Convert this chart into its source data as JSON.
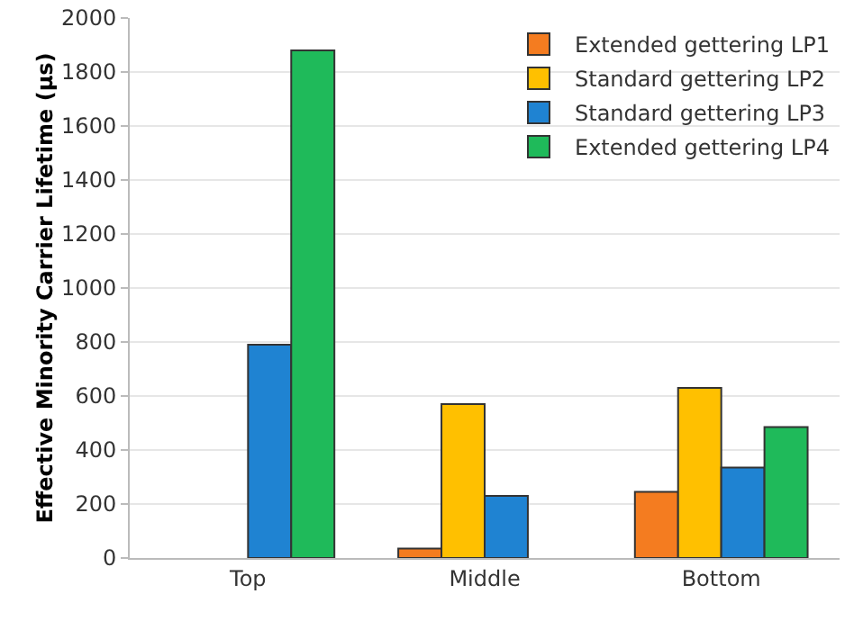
{
  "chart_data": {
    "type": "bar",
    "ylabel": "Effective Minority Carrier Lifetime (µs)",
    "categories": [
      "Top",
      "Middle",
      "Bottom"
    ],
    "series": [
      {
        "name": "Extended gettering LP1",
        "color": "#f47c20",
        "values": [
          null,
          35,
          245
        ]
      },
      {
        "name": "Standard gettering LP2",
        "color": "#ffc000",
        "values": [
          null,
          570,
          630
        ]
      },
      {
        "name": "Standard gettering LP3",
        "color": "#1f83d2",
        "values": [
          790,
          230,
          335
        ]
      },
      {
        "name": "Extended gettering LP4",
        "color": "#1fba5a",
        "values": [
          1880,
          null,
          485
        ]
      }
    ],
    "ylim": [
      0,
      2000
    ],
    "yticks": [
      0,
      200,
      400,
      600,
      800,
      1000,
      1200,
      1400,
      1600,
      1800,
      2000
    ],
    "grid": "y",
    "legend": "top right"
  }
}
